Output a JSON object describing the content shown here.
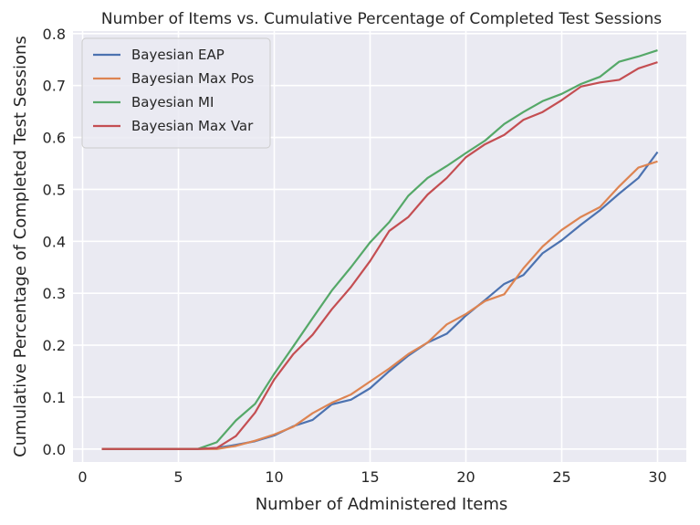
{
  "chart_data": {
    "type": "line",
    "title": "Number of Items vs. Cumulative Percentage of Completed Test Sessions",
    "xlabel": "Number of Administered Items",
    "ylabel": "Cumulative Percentage of Completed Test Sessions",
    "xlim": [
      -0.5,
      31.5
    ],
    "ylim": [
      -0.025,
      0.805
    ],
    "xticks": [
      0,
      5,
      10,
      15,
      20,
      25,
      30
    ],
    "yticks": [
      0.0,
      0.1,
      0.2,
      0.3,
      0.4,
      0.5,
      0.6,
      0.7,
      0.8
    ],
    "grid": true,
    "legend_position": "top-left",
    "background": "#eaeaf2",
    "x": [
      1,
      2,
      3,
      4,
      5,
      6,
      7,
      8,
      9,
      10,
      11,
      12,
      13,
      14,
      15,
      16,
      17,
      18,
      19,
      20,
      21,
      22,
      23,
      24,
      25,
      26,
      27,
      28,
      29,
      30
    ],
    "series": [
      {
        "name": "Bayesian EAP",
        "color": "#4c72b0",
        "values": [
          0,
          0,
          0,
          0,
          0,
          0,
          0.002,
          0.008,
          0.015,
          0.026,
          0.044,
          0.056,
          0.086,
          0.095,
          0.117,
          0.15,
          0.18,
          0.205,
          0.222,
          0.257,
          0.287,
          0.318,
          0.335,
          0.377,
          0.402,
          0.432,
          0.46,
          0.492,
          0.522,
          0.572
        ]
      },
      {
        "name": "Bayesian Max Pos",
        "color": "#dd8452",
        "values": [
          0,
          0,
          0,
          0,
          0,
          0,
          0,
          0.006,
          0.016,
          0.028,
          0.043,
          0.069,
          0.089,
          0.105,
          0.13,
          0.155,
          0.183,
          0.205,
          0.24,
          0.26,
          0.285,
          0.298,
          0.348,
          0.39,
          0.422,
          0.447,
          0.466,
          0.506,
          0.542,
          0.554
        ]
      },
      {
        "name": "Bayesian MI",
        "color": "#55a868",
        "values": [
          0,
          0,
          0,
          0,
          0,
          0,
          0.013,
          0.055,
          0.087,
          0.145,
          0.198,
          0.252,
          0.305,
          0.35,
          0.398,
          0.437,
          0.488,
          0.522,
          0.545,
          0.57,
          0.594,
          0.626,
          0.649,
          0.67,
          0.684,
          0.703,
          0.717,
          0.746,
          0.756,
          0.768
        ]
      },
      {
        "name": "Bayesian Max Var",
        "color": "#c44e52",
        "values": [
          0,
          0,
          0,
          0,
          0,
          0,
          0.002,
          0.025,
          0.07,
          0.134,
          0.183,
          0.22,
          0.269,
          0.312,
          0.362,
          0.42,
          0.447,
          0.49,
          0.522,
          0.562,
          0.587,
          0.605,
          0.634,
          0.649,
          0.672,
          0.698,
          0.706,
          0.711,
          0.733,
          0.745
        ]
      }
    ]
  }
}
